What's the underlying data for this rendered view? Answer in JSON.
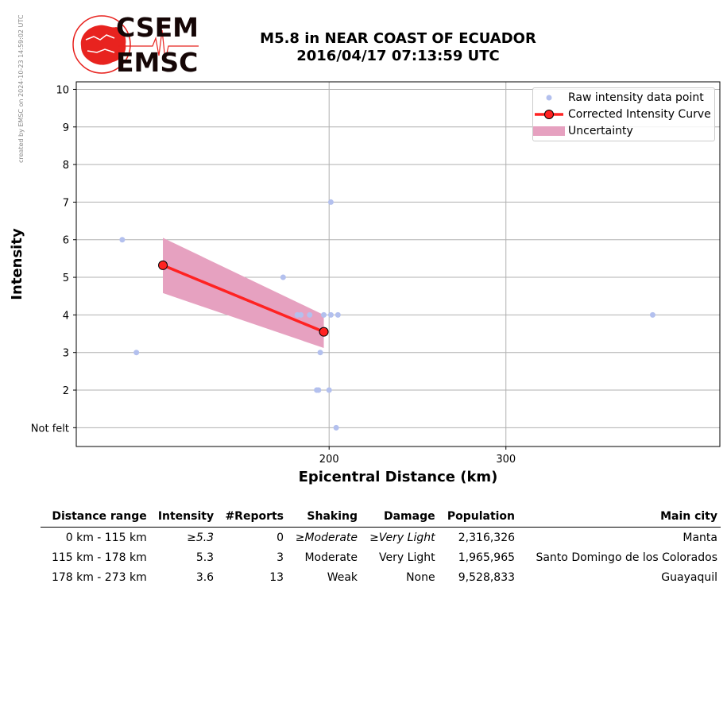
{
  "sidebar_note": "created by EMSC on 2024-10-23 14:59:02 UTC",
  "header": {
    "title_line1": "M5.8 in NEAR COAST OF ECUADOR",
    "title_line2": "2016/04/17 07:13:59 UTC",
    "logo_top": "CSEM",
    "logo_bottom": "EMSC"
  },
  "colors": {
    "raw_points": "#b3c0ee",
    "curve": "#ff2222",
    "uncertainty": "#e6a1c0",
    "logo_red": "#e8231f",
    "grid": "#b0b0b0"
  },
  "chart_data": {
    "type": "scatter",
    "xlabel": "Epicentral Distance (km)",
    "ylabel": "Intensity",
    "xlim": [
      57,
      421
    ],
    "ylim": [
      0.5,
      10.2
    ],
    "x_ticks": [
      200,
      300
    ],
    "y_ticks": [
      1,
      2,
      3,
      4,
      5,
      6,
      7,
      8,
      9,
      10
    ],
    "y_tick_labels": [
      "Not felt",
      "2",
      "3",
      "4",
      "5",
      "6",
      "7",
      "8",
      "9",
      "10"
    ],
    "grid": true,
    "legend_position": "top-right",
    "legend": [
      "Raw intensity data point",
      "Corrected Intensity Curve",
      "Uncertainty"
    ],
    "series": [
      {
        "name": "Raw intensity data point",
        "type": "scatter",
        "points": [
          [
            83,
            6
          ],
          [
            91,
            3
          ],
          [
            174,
            5
          ],
          [
            182,
            4
          ],
          [
            184,
            4
          ],
          [
            189,
            4
          ],
          [
            193,
            2
          ],
          [
            194,
            2
          ],
          [
            195,
            3
          ],
          [
            197,
            4
          ],
          [
            200,
            2
          ],
          [
            201,
            7
          ],
          [
            201,
            4
          ],
          [
            204,
            1
          ],
          [
            205,
            4
          ],
          [
            383,
            4
          ]
        ]
      },
      {
        "name": "Corrected Intensity Curve",
        "type": "line",
        "points": [
          [
            106,
            5.32
          ],
          [
            197,
            3.55
          ]
        ]
      },
      {
        "name": "Uncertainty",
        "type": "area",
        "x": [
          106,
          197
        ],
        "upper": [
          6.05,
          4.0
        ],
        "lower": [
          4.58,
          3.12
        ]
      }
    ]
  },
  "table": {
    "headers": [
      "Distance range",
      "Intensity",
      "#Reports",
      "Shaking",
      "Damage",
      "Population",
      "Main city"
    ],
    "rows": [
      [
        "0 km -  115 km",
        "≥5.3",
        "0",
        "≥Moderate",
        "≥Very Light",
        "2,316,326",
        "Manta"
      ],
      [
        "115 km -  178 km",
        "5.3",
        "3",
        "Moderate",
        "Very Light",
        "1,965,965",
        "Santo Domingo de los Colorados"
      ],
      [
        "178 km -  273 km",
        "3.6",
        "13",
        "Weak",
        "None",
        "9,528,833",
        "Guayaquil"
      ]
    ]
  }
}
